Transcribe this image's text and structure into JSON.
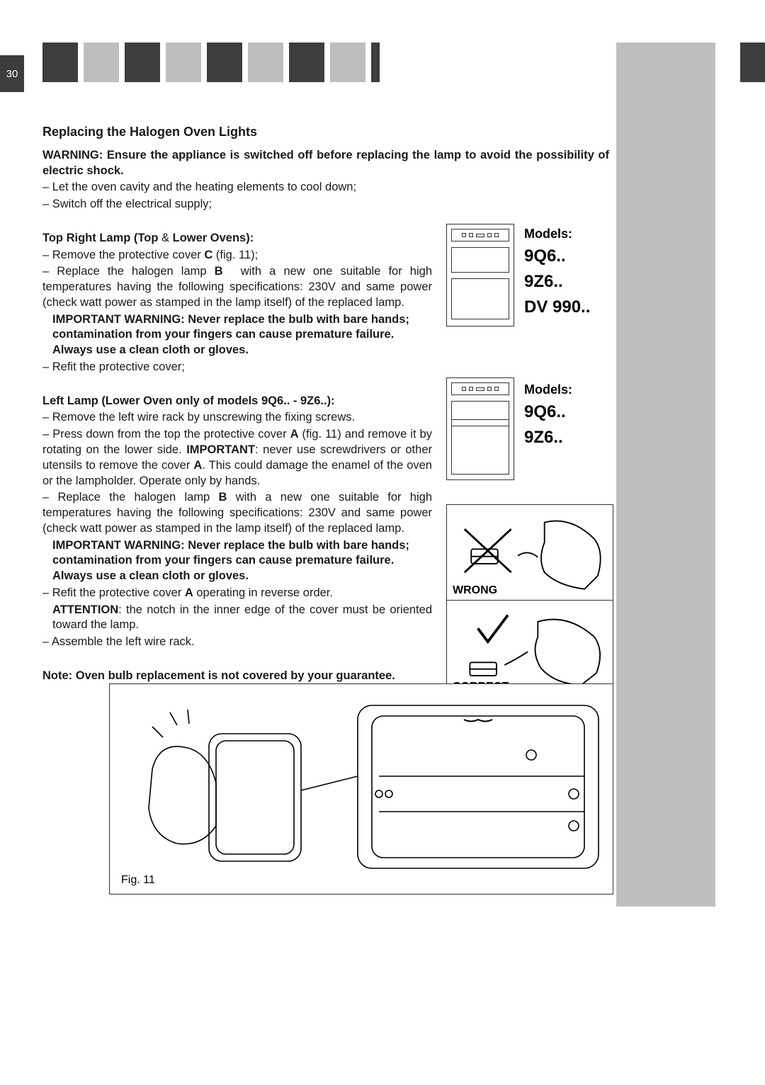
{
  "page_number": "30",
  "tabs": [
    {
      "color": "#3d3d3d"
    },
    {
      "color": "#BEBEBE"
    },
    {
      "color": "#3d3d3d"
    },
    {
      "color": "#BEBEBE"
    },
    {
      "color": "#3d3d3d"
    },
    {
      "color": "#BEBEBE"
    },
    {
      "color": "#3d3d3d"
    },
    {
      "color": "#BEBEBE"
    },
    {
      "color": "#3d3d3d"
    }
  ],
  "title": "Replacing the Halogen Oven Lights",
  "warning": "WARNING: Ensure the appliance is switched off before replacing the lamp to avoid the possibility of electric shock.",
  "intro_lines": [
    "– Let the oven cavity and the heating elements to cool down;",
    "– Switch off the electrical supply;"
  ],
  "section1": {
    "heading_parts": [
      "Top Right Lamp (Top ",
      "&",
      " Lower Ovens):"
    ],
    "items": [
      {
        "first": "– Remove the protective cover ",
        "bold": "C",
        "rest": " (fig. 11);"
      },
      {
        "first": "– Replace the halogen lamp ",
        "bold": "B",
        "rest": " with a new one suitable for high temperatures having the following specifications: 230V and same power (check watt power as stamped in the lamp itself) of the replaced lamp."
      }
    ],
    "warn_block": [
      "IMPORTANT WARNING: Never replace the bulb with bare hands; contamination from your fingers can cause premature failure. Always use a clean cloth or gloves."
    ],
    "after": [
      "– Refit the protective cover;"
    ]
  },
  "section2": {
    "heading": "Left Lamp (Lower Oven only of models 9Q6.. - 9Z6..):",
    "items": [
      "– Remove the left wire rack by unscrewing the fixing screws.",
      {
        "first": "– Press down from the top the protective cover ",
        "bold": "A",
        "rest": " (fig. 11) and remove it by rotating on the lower side. ",
        "bold2": "IMPORTANT",
        "rest2": ": never use screwdrivers or other utensils to remove the cover ",
        "bold3": "A",
        "rest3": ". This could damage the enamel of the oven or the lampholder. Operate only by hands."
      },
      {
        "first": "– Replace the halogen lamp ",
        "bold": "B",
        "rest": " with a new one suitable for high temperatures having the following specifications: 230V and same power (check watt power as stamped in the lamp itself) of the replaced lamp."
      }
    ],
    "warn_block": [
      "IMPORTANT WARNING: Never replace the bulb with bare hands; contamination from your fingers can cause premature failure. Always use a clean cloth or gloves."
    ],
    "item4": {
      "first": "– Refit the protective cover ",
      "bold": "A",
      "rest": " operating in reverse order."
    },
    "attention": {
      "bold": "ATTENTION",
      "rest": ": the notch in the inner edge of the cover must be oriented toward the lamp."
    },
    "item5": "– Assemble the left wire rack."
  },
  "note": "Note: Oven bulb replacement is not covered by your guarantee.",
  "model_box1": {
    "label": "Models:",
    "codes": [
      "9Q6..",
      "9Z6..",
      "DV 990.."
    ]
  },
  "model_box2": {
    "label": "Models:",
    "codes": [
      "9Q6..",
      "9Z6.."
    ]
  },
  "wrong_label": "WRONG",
  "correct_label": "CORRECT",
  "figure_label": "Fig. 11",
  "colors": {
    "dark": "#3d3d3d",
    "grey": "#BEBEBE",
    "bg": "#ffffff"
  }
}
